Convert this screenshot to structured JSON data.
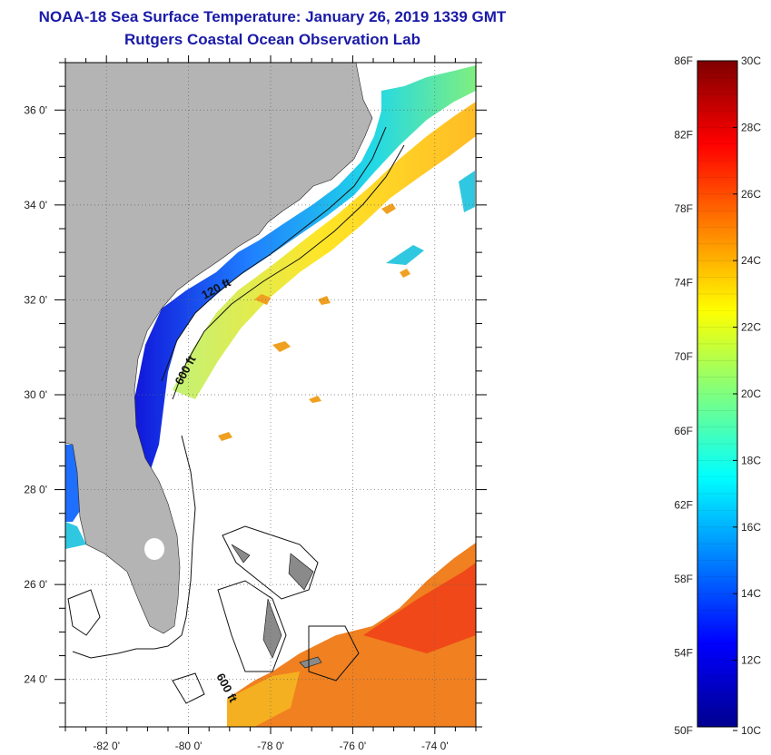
{
  "header": {
    "title": "NOAA-18 Sea Surface Temperature:  January 26, 2019 1339 GMT",
    "subtitle": "Rutgers Coastal Ocean Observation Lab"
  },
  "map": {
    "lon_range": [
      -83,
      -73
    ],
    "lat_range": [
      23,
      37
    ],
    "lon_ticks": [
      {
        "value": -82,
        "label": "-82 0'"
      },
      {
        "value": -80,
        "label": "-80 0'"
      },
      {
        "value": -78,
        "label": "-78 0'"
      },
      {
        "value": -76,
        "label": "-76 0'"
      },
      {
        "value": -74,
        "label": "-74 0'"
      }
    ],
    "lat_ticks": [
      {
        "value": 36,
        "label": "36 0'"
      },
      {
        "value": 34,
        "label": "34 0'"
      },
      {
        "value": 32,
        "label": "32 0'"
      },
      {
        "value": 30,
        "label": "30 0'"
      },
      {
        "value": 28,
        "label": "28 0'"
      },
      {
        "value": 26,
        "label": "26 0'"
      },
      {
        "value": 24,
        "label": "24 0'"
      }
    ],
    "depth_labels": [
      "120 ft",
      "600 ft",
      "600 ft"
    ],
    "grid": "dotted",
    "colors": {
      "land": "#b4b4b4",
      "no_data": "#ffffff",
      "coast_line": "#000000"
    }
  },
  "colorbar": {
    "fahrenheit_labels": [
      "86F",
      "82F",
      "78F",
      "74F",
      "70F",
      "66F",
      "62F",
      "58F",
      "54F",
      "50F"
    ],
    "celsius_labels": [
      "30C",
      "28C",
      "26C",
      "24C",
      "22C",
      "20C",
      "18C",
      "16C",
      "14C",
      "12C",
      "10C"
    ],
    "range_c": [
      10,
      30
    ],
    "range_f": [
      50,
      86
    ],
    "colormap": "jet"
  }
}
